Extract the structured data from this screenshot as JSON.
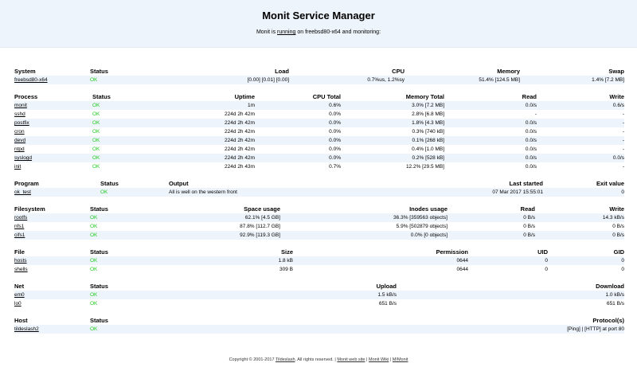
{
  "header": {
    "title": "Monit Service Manager",
    "sub_prefix": "Monit is",
    "sub_running": "running",
    "sub_suffix": "on freebsd80-x64 and monitoring:"
  },
  "system": {
    "headers": [
      "System",
      "Status",
      "Load",
      "CPU",
      "Memory",
      "Swap"
    ],
    "rows": [
      [
        "freebsd80-x64",
        "OK",
        "[0.00] [0.01] [0.00]",
        "0.7%us, 1.2%sy",
        "51.4% [124.5 MB]",
        "1.4% [7.2 MB]"
      ]
    ]
  },
  "process": {
    "headers": [
      "Process",
      "Status",
      "Uptime",
      "CPU Total",
      "Memory Total",
      "Read",
      "Write"
    ],
    "rows": [
      [
        "monit",
        "OK",
        "1m",
        "0.6%",
        "3.0% [7.2 MB]",
        "0.0/s",
        "0.6/s"
      ],
      [
        "sshd",
        "OK",
        "224d 2h 42m",
        "0.0%",
        "2.8% [6.8 MB]",
        "-",
        "-"
      ],
      [
        "postfix",
        "OK",
        "224d 2h 42m",
        "0.0%",
        "1.8% [4.3 MB]",
        "0.0/s",
        "-"
      ],
      [
        "cron",
        "OK",
        "224d 2h 42m",
        "0.0%",
        "0.3% [740 kB]",
        "0.0/s",
        "-"
      ],
      [
        "devd",
        "OK",
        "224d 2h 42m",
        "0.0%",
        "0.1% [268 kB]",
        "0.0/s",
        "-"
      ],
      [
        "ntpd",
        "OK",
        "224d 2h 42m",
        "0.0%",
        "0.4% [1.0 MB]",
        "0.0/s",
        "-"
      ],
      [
        "syslogd",
        "OK",
        "224d 2h 42m",
        "0.0%",
        "0.2% [528 kB]",
        "0.0/s",
        "0.0/s"
      ],
      [
        "init",
        "OK",
        "224d 2h 43m",
        "0.7%",
        "12.2% [29.5 MB]",
        "0.0/s",
        "-"
      ]
    ]
  },
  "program": {
    "headers": [
      "Program",
      "Status",
      "Output",
      "Last started",
      "Exit value"
    ],
    "rows": [
      [
        "ok_test",
        "OK",
        "All is well on the western front",
        "07 Mar 2017 15:55:01",
        "0"
      ]
    ]
  },
  "filesystem": {
    "headers": [
      "Filesystem",
      "Status",
      "Space usage",
      "Inodes usage",
      "Read",
      "Write"
    ],
    "rows": [
      [
        "rootfs",
        "OK",
        "62.1% [4.5 GB]",
        "36.3% [359563 objects]",
        "0 B/s",
        "14.3 kB/s"
      ],
      [
        "nfs1",
        "OK",
        "87.8% [112.7 GB]",
        "5.9% [502879 objects]",
        "0 B/s",
        "0 B/s"
      ],
      [
        "cifs1",
        "OK",
        "92.9% [119.3 GB]",
        "0.0% [0 objects]",
        "0 B/s",
        "0 B/s"
      ]
    ]
  },
  "file": {
    "headers": [
      "File",
      "Status",
      "Size",
      "Permission",
      "UID",
      "GID"
    ],
    "rows": [
      [
        "hosts",
        "OK",
        "1.8 kB",
        "0644",
        "0",
        "0"
      ],
      [
        "shells",
        "OK",
        "309 B",
        "0644",
        "0",
        "0"
      ]
    ]
  },
  "net": {
    "headers": [
      "Net",
      "Status",
      "Upload",
      "Download"
    ],
    "rows": [
      [
        "em0",
        "OK",
        "1.5 kB/s",
        "1.0 kB/s"
      ],
      [
        "lo0",
        "OK",
        "651 B/s",
        "651 B/s"
      ]
    ]
  },
  "host": {
    "headers": [
      "Host",
      "Status",
      "Protocol(s)"
    ],
    "rows": [
      [
        "tildeslash2",
        "OK",
        "[Ping]  |  [HTTP] at port 80"
      ]
    ]
  },
  "footer": {
    "copyright": "Copyright © 2001-2017",
    "company": "Tildeslash",
    "rights": ". All rights reserved.",
    "sep": "|",
    "link1": "Monit web site",
    "link2": "Monit Wiki",
    "link3": "M/Monit"
  },
  "colors": {
    "ok": "#22cc22",
    "header_bg": "#eef4fb",
    "row_alt": "#eef4fb"
  }
}
